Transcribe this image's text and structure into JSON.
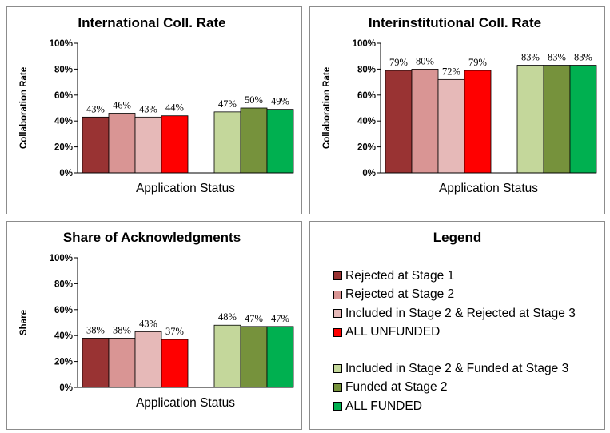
{
  "colors": {
    "rejected_stage1": "#993333",
    "rejected_stage2": "#d99594",
    "included_rejected_stage3": "#e6b9b8",
    "all_unfunded": "#ff0000",
    "included_funded_stage3": "#c4d79b",
    "funded_stage2": "#76923c",
    "all_funded": "#00b050"
  },
  "chart_data": [
    {
      "type": "bar",
      "title": "International Coll. Rate",
      "xlabel": "Application Status",
      "ylabel": "Collaboration Rate",
      "ylim": [
        0,
        100
      ],
      "yticks": [
        "0%",
        "20%",
        "40%",
        "60%",
        "80%",
        "100%"
      ],
      "grid": false,
      "groups": [
        {
          "values": [
            43,
            46,
            43,
            44
          ],
          "labels": [
            "43%",
            "46%",
            "43%",
            "44%"
          ],
          "colors": [
            "#993333",
            "#d99594",
            "#e6b9b8",
            "#ff0000"
          ]
        },
        {
          "values": [
            47,
            50,
            49
          ],
          "labels": [
            "47%",
            "50%",
            "49%"
          ],
          "colors": [
            "#c4d79b",
            "#76923c",
            "#00b050"
          ]
        }
      ]
    },
    {
      "type": "bar",
      "title": "Interinstitutional Coll. Rate",
      "xlabel": "Application Status",
      "ylabel": "Collaboration Rate",
      "ylim": [
        0,
        100
      ],
      "yticks": [
        "0%",
        "20%",
        "40%",
        "60%",
        "80%",
        "100%"
      ],
      "grid": false,
      "groups": [
        {
          "values": [
            79,
            80,
            72,
            79
          ],
          "labels": [
            "79%",
            "80%",
            "72%",
            "79%"
          ],
          "colors": [
            "#993333",
            "#d99594",
            "#e6b9b8",
            "#ff0000"
          ]
        },
        {
          "values": [
            83,
            83,
            83
          ],
          "labels": [
            "83%",
            "83%",
            "83%"
          ],
          "colors": [
            "#c4d79b",
            "#76923c",
            "#00b050"
          ]
        }
      ]
    },
    {
      "type": "bar",
      "title": "Share of Acknowledgments",
      "xlabel": "Application Status",
      "ylabel": "Share",
      "ylim": [
        0,
        100
      ],
      "yticks": [
        "0%",
        "20%",
        "40%",
        "60%",
        "80%",
        "100%"
      ],
      "grid": false,
      "groups": [
        {
          "values": [
            38,
            38,
            43,
            37
          ],
          "labels": [
            "38%",
            "38%",
            "43%",
            "37%"
          ],
          "colors": [
            "#993333",
            "#d99594",
            "#e6b9b8",
            "#ff0000"
          ]
        },
        {
          "values": [
            48,
            47,
            47
          ],
          "labels": [
            "48%",
            "47%",
            "47%"
          ],
          "colors": [
            "#c4d79b",
            "#76923c",
            "#00b050"
          ]
        }
      ]
    }
  ],
  "legend": {
    "title": "Legend",
    "unfunded": [
      {
        "label": "Rejected at Stage 1",
        "color": "#993333"
      },
      {
        "label": "Rejected at Stage 2",
        "color": "#d99594"
      },
      {
        "label": "Included in Stage 2 & Rejected at Stage 3",
        "color": "#e6b9b8"
      },
      {
        "label": "ALL UNFUNDED",
        "color": "#ff0000"
      }
    ],
    "funded": [
      {
        "label": "Included in Stage 2 & Funded at Stage 3",
        "color": "#c4d79b"
      },
      {
        "label": "Funded at Stage 2",
        "color": "#76923c"
      },
      {
        "label": "ALL FUNDED",
        "color": "#00b050"
      }
    ]
  }
}
